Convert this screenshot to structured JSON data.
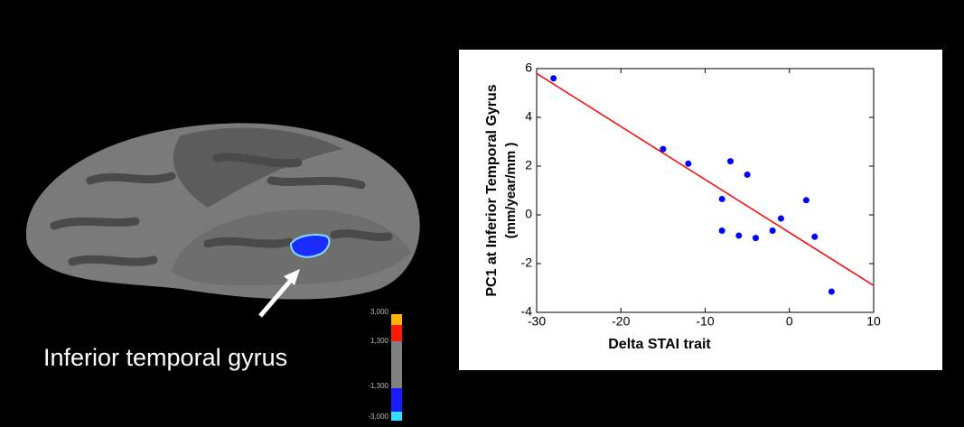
{
  "annotation": "Inferior temporal gyrus",
  "colorbar": {
    "labels": [
      "3,000",
      "1,300",
      "-1,300",
      "-3,000"
    ]
  },
  "chart_data": {
    "type": "scatter",
    "xlabel": "Delta STAI trait",
    "ylabel": [
      "PC1 at Inferior Temporal Gyrus",
      "(mm/year/mm )"
    ],
    "x": [
      -28,
      -15,
      -12,
      -7,
      -5,
      -8,
      -8,
      -6,
      -4,
      -2,
      -1,
      2,
      3,
      5
    ],
    "y": [
      5.6,
      2.7,
      2.1,
      2.2,
      1.65,
      0.65,
      -0.65,
      -0.85,
      -0.95,
      -0.65,
      -0.15,
      0.6,
      -0.9,
      -3.15
    ],
    "color": "#0000ff",
    "fit_line": {
      "x": [
        -30,
        10
      ],
      "y": [
        5.8,
        -2.9
      ],
      "color": "#ff0000"
    },
    "xlim": [
      -30,
      10
    ],
    "xticks": [
      -30,
      -20,
      -10,
      0,
      10
    ],
    "ylim": [
      -4,
      6
    ],
    "yticks": [
      -4,
      -2,
      0,
      2,
      4,
      6
    ]
  }
}
